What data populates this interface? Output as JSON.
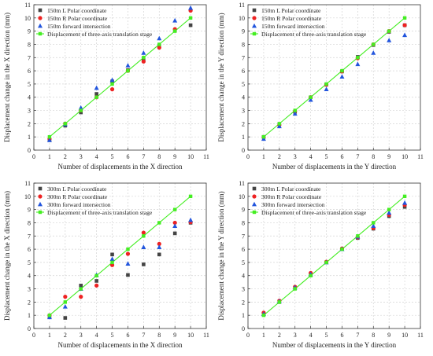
{
  "chart_data": [
    {
      "type": "scatter",
      "xlabel": "Number of displacements in the X direction",
      "ylabel": "Displacement change in the X direction (mm)",
      "xlim": [
        0,
        11
      ],
      "ylim": [
        0,
        11
      ],
      "xticks": [
        "0",
        "1",
        "2",
        "3",
        "4",
        "5",
        "6",
        "7",
        "8",
        "9",
        "10",
        "11"
      ],
      "yticks": [
        "0",
        "1",
        "2",
        "3",
        "4",
        "5",
        "6",
        "7",
        "8",
        "9",
        "10",
        "11"
      ],
      "grid": true,
      "legend": "top-left",
      "series": [
        {
          "name": "150m L Polar coordinate",
          "marker": "square",
          "color": "#444444",
          "x": [
            1,
            2,
            3,
            4,
            5,
            6,
            7,
            8,
            9,
            10
          ],
          "y": [
            0.75,
            1.85,
            2.85,
            4.25,
            5.2,
            6.05,
            6.85,
            7.9,
            9.05,
            9.45
          ]
        },
        {
          "name": "150m R Polar coordinate",
          "marker": "circle",
          "color": "#ee2222",
          "x": [
            1,
            2,
            3,
            4,
            5,
            6,
            7,
            8,
            9,
            10
          ],
          "y": [
            0.85,
            2.0,
            3.0,
            4.0,
            4.6,
            6.0,
            6.7,
            7.75,
            9.15,
            10.55
          ]
        },
        {
          "name": "150m forward intersection",
          "marker": "triangle",
          "color": "#2255dd",
          "x": [
            1,
            2,
            3,
            4,
            5,
            6,
            7,
            8,
            9,
            10
          ],
          "y": [
            0.75,
            1.95,
            3.2,
            4.7,
            5.3,
            6.4,
            7.35,
            8.45,
            9.8,
            10.75
          ]
        },
        {
          "name": "Displacement of three-axis translation stage",
          "marker": "square-line",
          "color": "#44ee22",
          "x": [
            1,
            2,
            3,
            4,
            5,
            6,
            7,
            8,
            9,
            10
          ],
          "y": [
            1,
            2,
            3,
            4,
            5,
            6,
            7,
            8,
            9,
            10
          ]
        }
      ]
    },
    {
      "type": "scatter",
      "xlabel": "Number of displacements in the Y direction",
      "ylabel": "Displacement change in the Y direction (mm)",
      "xlim": [
        0,
        11
      ],
      "ylim": [
        0,
        11
      ],
      "xticks": [
        "0",
        "1",
        "2",
        "3",
        "4",
        "5",
        "6",
        "7",
        "8",
        "9",
        "10",
        "11"
      ],
      "yticks": [
        "0",
        "1",
        "2",
        "3",
        "4",
        "5",
        "6",
        "7",
        "8",
        "9",
        "10",
        "11"
      ],
      "grid": true,
      "legend": "top-left",
      "series": [
        {
          "name": "150m L Polar coordinate",
          "marker": "square",
          "color": "#444444",
          "x": [
            1,
            2,
            3,
            4,
            5,
            6,
            7,
            8,
            9,
            10
          ],
          "y": [
            1.0,
            1.95,
            2.9,
            4.0,
            4.95,
            5.95,
            7.05,
            7.95,
            8.95,
            9.45
          ]
        },
        {
          "name": "150m R Polar coordinate",
          "marker": "circle",
          "color": "#ee2222",
          "x": [
            1,
            2,
            3,
            4,
            5,
            6,
            7,
            8,
            9,
            10
          ],
          "y": [
            0.95,
            1.9,
            2.95,
            4.0,
            4.95,
            5.95,
            6.95,
            8.0,
            9.0,
            9.45
          ]
        },
        {
          "name": "150m forward intersection",
          "marker": "triangle",
          "color": "#2255dd",
          "x": [
            1,
            2,
            3,
            4,
            5,
            6,
            7,
            8,
            9,
            10
          ],
          "y": [
            0.85,
            1.8,
            2.75,
            3.8,
            4.6,
            5.55,
            6.5,
            7.35,
            8.3,
            8.7
          ]
        },
        {
          "name": "Displacement of three-axis translation stage",
          "marker": "square-line",
          "color": "#44ee22",
          "x": [
            1,
            2,
            3,
            4,
            5,
            6,
            7,
            8,
            9,
            10
          ],
          "y": [
            1,
            2,
            3,
            4,
            5,
            6,
            7,
            8,
            9,
            10
          ]
        }
      ]
    },
    {
      "type": "scatter",
      "xlabel": "Number of displacements in the X direction",
      "ylabel": "Displacement change in the X direction (mm)",
      "xlim": [
        0,
        11
      ],
      "ylim": [
        0,
        11
      ],
      "xticks": [
        "0",
        "1",
        "2",
        "3",
        "4",
        "5",
        "6",
        "7",
        "8",
        "9",
        "10",
        "11"
      ],
      "yticks": [
        "0",
        "1",
        "2",
        "3",
        "4",
        "5",
        "6",
        "7",
        "8",
        "9",
        "10",
        "11"
      ],
      "grid": true,
      "legend": "top-left",
      "series": [
        {
          "name": "300m L Polar coordinate",
          "marker": "square",
          "color": "#444444",
          "x": [
            1,
            2,
            3,
            4,
            5,
            6,
            7,
            8,
            9,
            10
          ],
          "y": [
            0.85,
            0.8,
            3.25,
            3.6,
            5.6,
            4.05,
            4.85,
            5.6,
            7.2,
            8.0
          ]
        },
        {
          "name": "300m R Polar coordinate",
          "marker": "circle",
          "color": "#ee2222",
          "x": [
            1,
            2,
            3,
            4,
            5,
            6,
            7,
            8,
            9,
            10
          ],
          "y": [
            1.0,
            2.4,
            2.4,
            3.25,
            4.8,
            5.65,
            7.25,
            6.4,
            8.0,
            8.05
          ]
        },
        {
          "name": "300m forward intersection",
          "marker": "triangle",
          "color": "#2255dd",
          "x": [
            1,
            2,
            3,
            4,
            5,
            6,
            7,
            8,
            9,
            10
          ],
          "y": [
            0.85,
            1.65,
            3.0,
            4.05,
            5.25,
            4.9,
            6.15,
            6.15,
            7.75,
            8.2
          ]
        },
        {
          "name": "Displacement of three-axis translation stage",
          "marker": "square-line",
          "color": "#44ee22",
          "x": [
            1,
            2,
            3,
            4,
            5,
            6,
            7,
            8,
            9,
            10
          ],
          "y": [
            1,
            2,
            3,
            4,
            5,
            6,
            7,
            8,
            9,
            10
          ]
        }
      ]
    },
    {
      "type": "scatter",
      "xlabel": "Number of displacements in the Y direction",
      "ylabel": "Displacement change in the Y direction (mm)",
      "xlim": [
        0,
        11
      ],
      "ylim": [
        0,
        11
      ],
      "xticks": [
        "0",
        "1",
        "2",
        "3",
        "4",
        "5",
        "6",
        "7",
        "8",
        "9",
        "10",
        "11"
      ],
      "yticks": [
        "0",
        "1",
        "2",
        "3",
        "4",
        "5",
        "6",
        "7",
        "8",
        "9",
        "10",
        "11"
      ],
      "grid": true,
      "legend": "top-left",
      "series": [
        {
          "name": "300m L Polar coordinate",
          "marker": "square",
          "color": "#444444",
          "x": [
            1,
            2,
            3,
            4,
            5,
            6,
            7,
            8,
            9,
            10
          ],
          "y": [
            1.05,
            2.0,
            3.05,
            4.05,
            5.0,
            6.0,
            6.85,
            7.55,
            8.5,
            9.2
          ]
        },
        {
          "name": "300m R Polar coordinate",
          "marker": "circle",
          "color": "#ee2222",
          "x": [
            1,
            2,
            3,
            4,
            5,
            6,
            7,
            8,
            9,
            10
          ],
          "y": [
            1.2,
            2.1,
            3.15,
            4.2,
            5.05,
            6.05,
            6.9,
            7.6,
            8.6,
            9.35
          ]
        },
        {
          "name": "300m forward intersection",
          "marker": "triangle",
          "color": "#2255dd",
          "x": [
            1,
            2,
            3,
            4,
            5,
            6,
            7,
            8,
            9,
            10
          ],
          "y": [
            1.1,
            2.05,
            3.1,
            4.1,
            5.0,
            6.0,
            6.95,
            7.75,
            8.75,
            9.5
          ]
        },
        {
          "name": "Displacement of three-axis translation stage",
          "marker": "square-line",
          "color": "#44ee22",
          "x": [
            1,
            2,
            3,
            4,
            5,
            6,
            7,
            8,
            9,
            10
          ],
          "y": [
            1,
            2,
            3,
            4,
            5,
            6,
            7,
            8,
            9,
            10
          ]
        }
      ]
    }
  ]
}
